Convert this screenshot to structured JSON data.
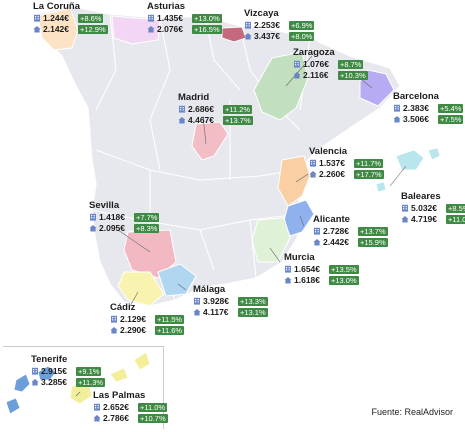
{
  "source": "Fuente: RealAdvisor",
  "colors": {
    "land": "#e7e8ee",
    "border": "#ffffff",
    "positive_badge": "#3f8a44",
    "galicia": "#fde3c6",
    "asturias": "#f3d6f5",
    "vizcaya": "#c56a7c",
    "aragon": "#c2dfc0",
    "catalunya": "#b7acf3",
    "madrid": "#f2bdc4",
    "valencia": "#f9cfa3",
    "alicante": "#8fb1ee",
    "baleares": "#b8e6ec",
    "andalucia_sevilla": "#f3b9c3",
    "malaga": "#b0d6f2",
    "cadiz": "#f8f4b0",
    "murcia": "#dff1d6",
    "canarias_tenerife": "#6d9edc",
    "canarias_laspalmas": "#f3ee9a"
  },
  "icons": {
    "flat": "apartment-icon",
    "house": "house-icon"
  },
  "regions": [
    {
      "id": "la-coruna",
      "name": "La Coruña",
      "flat": {
        "price": "1.244€",
        "change": "+8.6%"
      },
      "house": {
        "price": "2.142€",
        "change": "+12.9%"
      }
    },
    {
      "id": "asturias",
      "name": "Asturias",
      "flat": {
        "price": "1.435€",
        "change": "+13.0%"
      },
      "house": {
        "price": "2.076€",
        "change": "+16.5%"
      }
    },
    {
      "id": "vizcaya",
      "name": "Vizcaya",
      "flat": {
        "price": "2.253€",
        "change": "+6.9%"
      },
      "house": {
        "price": "3.437€",
        "change": "+8.0%"
      }
    },
    {
      "id": "zaragoza",
      "name": "Zaragoza",
      "flat": {
        "price": "1.076€",
        "change": "+8.7%"
      },
      "house": {
        "price": "2.116€",
        "change": "+10.3%"
      }
    },
    {
      "id": "madrid",
      "name": "Madrid",
      "flat": {
        "price": "2.686€",
        "change": "+11.2%"
      },
      "house": {
        "price": "4.467€",
        "change": "+13.7%"
      }
    },
    {
      "id": "barcelona",
      "name": "Barcelona",
      "flat": {
        "price": "2.383€",
        "change": "+5.4%"
      },
      "house": {
        "price": "3.506€",
        "change": "+7.5%"
      }
    },
    {
      "id": "valencia",
      "name": "Valencia",
      "flat": {
        "price": "1.537€",
        "change": "+11.7%"
      },
      "house": {
        "price": "2.260€",
        "change": "+17.7%"
      }
    },
    {
      "id": "baleares",
      "name": "Baleares",
      "flat": {
        "price": "5.032€",
        "change": "+8.5%"
      },
      "house": {
        "price": "4.719€",
        "change": "+11.0%"
      }
    },
    {
      "id": "sevilla",
      "name": "Sevilla",
      "flat": {
        "price": "1.418€",
        "change": "+7.7%"
      },
      "house": {
        "price": "2.095€",
        "change": "+8.3%"
      }
    },
    {
      "id": "alicante",
      "name": "Alicante",
      "flat": {
        "price": "2.728€",
        "change": "+13.7%"
      },
      "house": {
        "price": "2.442€",
        "change": "+15.9%"
      }
    },
    {
      "id": "murcia",
      "name": "Murcia",
      "flat": {
        "price": "1.654€",
        "change": "+13.5%"
      },
      "house": {
        "price": "1.618€",
        "change": "+13.0%"
      }
    },
    {
      "id": "malaga",
      "name": "Málaga",
      "flat": {
        "price": "3.928€",
        "change": "+13.3%"
      },
      "house": {
        "price": "4.117€",
        "change": "+13.1%"
      }
    },
    {
      "id": "cadiz",
      "name": "Cádiz",
      "flat": {
        "price": "2.129€",
        "change": "+11.5%"
      },
      "house": {
        "price": "2.290€",
        "change": "+11.6%"
      }
    },
    {
      "id": "tenerife",
      "name": "Tenerife",
      "flat": {
        "price": "2.915€",
        "change": "+9.1%"
      },
      "house": {
        "price": "3.285€",
        "change": "+11.3%"
      }
    },
    {
      "id": "las-palmas",
      "name": "Las Palmas",
      "flat": {
        "price": "2.652€",
        "change": "+11.0%"
      },
      "house": {
        "price": "2.786€",
        "change": "+10.7%"
      }
    }
  ]
}
